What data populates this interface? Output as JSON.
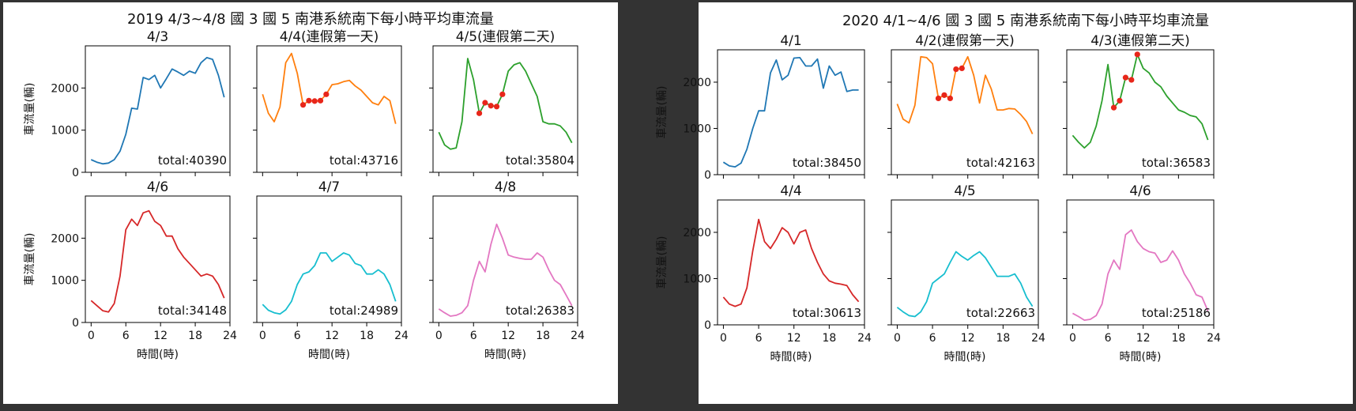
{
  "chart_data": [
    {
      "type": "line",
      "title": "2019 4/3~4/8 國 3 國 5 南港系統南下每小時平均車流量",
      "ylabel": "車流量(輛)",
      "xlabel": "時間(時)",
      "x": [
        0,
        1,
        2,
        3,
        4,
        5,
        6,
        7,
        8,
        9,
        10,
        11,
        12,
        13,
        14,
        15,
        16,
        17,
        18,
        19,
        20,
        21,
        22,
        23
      ],
      "xticks": [
        0,
        6,
        12,
        18,
        24
      ],
      "yticks": [
        0,
        1000,
        2000
      ],
      "ylim": [
        0,
        3000
      ],
      "xlim": [
        -1,
        24
      ],
      "subplots": [
        {
          "title": "4/3",
          "color": "#1f77b4",
          "total_label": "total:40390",
          "values": [
            300,
            240,
            200,
            220,
            300,
            500,
            900,
            1520,
            1500,
            2250,
            2200,
            2300,
            2000,
            2220,
            2450,
            2380,
            2300,
            2400,
            2350,
            2600,
            2720,
            2680,
            2300,
            1780
          ],
          "highlight": []
        },
        {
          "title": "4/4(連假第一天)",
          "color": "#ff7f0e",
          "total_label": "total:43716",
          "values": [
            1850,
            1400,
            1200,
            1550,
            2600,
            2820,
            2350,
            1600,
            1700,
            1690,
            1700,
            1850,
            2080,
            2100,
            2150,
            2180,
            2050,
            1950,
            1800,
            1650,
            1600,
            1800,
            1700,
            1150
          ],
          "highlight": [
            7,
            8,
            9,
            10,
            11
          ]
        },
        {
          "title": "4/5(連假第二天)",
          "color": "#2ca02c",
          "total_label": "total:35804",
          "values": [
            950,
            650,
            550,
            580,
            1200,
            2700,
            2200,
            1400,
            1650,
            1580,
            1560,
            1850,
            2400,
            2550,
            2600,
            2400,
            2100,
            1800,
            1200,
            1150,
            1150,
            1100,
            950,
            700
          ],
          "highlight": [
            7,
            8,
            9,
            10,
            11
          ]
        },
        {
          "title": "4/6",
          "color": "#d62728",
          "total_label": "total:34148",
          "values": [
            520,
            400,
            280,
            250,
            450,
            1100,
            2200,
            2450,
            2300,
            2600,
            2650,
            2400,
            2300,
            2050,
            2050,
            1750,
            1550,
            1400,
            1250,
            1100,
            1150,
            1100,
            900,
            580
          ],
          "highlight": []
        },
        {
          "title": "4/7",
          "color": "#17becf",
          "total_label": "total:24989",
          "values": [
            430,
            290,
            230,
            200,
            300,
            500,
            900,
            1150,
            1200,
            1350,
            1650,
            1650,
            1450,
            1550,
            1650,
            1600,
            1400,
            1350,
            1150,
            1150,
            1250,
            1150,
            900,
            500
          ],
          "highlight": []
        },
        {
          "title": "4/8",
          "color": "#e377c2",
          "total_label": "total:26383",
          "values": [
            320,
            230,
            150,
            170,
            230,
            400,
            1000,
            1450,
            1200,
            1850,
            2330,
            2000,
            1600,
            1550,
            1520,
            1500,
            1500,
            1650,
            1550,
            1250,
            1000,
            900,
            650,
            400
          ],
          "highlight": []
        }
      ]
    },
    {
      "type": "line",
      "title": "2020 4/1~4/6 國 3 國 5 南港系統南下每小時平均車流量",
      "ylabel": "車流量(輛)",
      "xlabel": "時間(時)",
      "x": [
        0,
        1,
        2,
        3,
        4,
        5,
        6,
        7,
        8,
        9,
        10,
        11,
        12,
        13,
        14,
        15,
        16,
        17,
        18,
        19,
        20,
        21,
        22,
        23
      ],
      "xticks": [
        0,
        6,
        12,
        18,
        24
      ],
      "yticks": [
        0,
        1000,
        2000
      ],
      "ylim": [
        0,
        2700
      ],
      "xlim": [
        -1,
        24
      ],
      "subplots": [
        {
          "title": "4/1",
          "color": "#1f77b4",
          "total_label": "total:38450",
          "values": [
            270,
            190,
            170,
            250,
            550,
            1000,
            1380,
            1380,
            2200,
            2480,
            2050,
            2150,
            2520,
            2530,
            2350,
            2350,
            2500,
            1870,
            2350,
            2150,
            2220,
            1800,
            1830,
            1830
          ],
          "highlight": []
        },
        {
          "title": "4/2(連假第一天)",
          "color": "#ff7f0e",
          "total_label": "total:42163",
          "values": [
            1530,
            1200,
            1120,
            1500,
            2550,
            2530,
            2400,
            1650,
            1720,
            1650,
            2280,
            2300,
            2550,
            2150,
            1550,
            2150,
            1850,
            1400,
            1400,
            1430,
            1420,
            1300,
            1150,
            880
          ],
          "highlight": [
            7,
            8,
            9,
            10,
            11
          ]
        },
        {
          "title": "4/3(連假第二天)",
          "color": "#2ca02c",
          "total_label": "total:36583",
          "values": [
            850,
            700,
            580,
            700,
            1050,
            1600,
            2380,
            1450,
            1600,
            2100,
            2050,
            2600,
            2300,
            2200,
            2000,
            1900,
            1700,
            1550,
            1400,
            1350,
            1280,
            1250,
            1100,
            750
          ],
          "highlight": [
            7,
            8,
            9,
            10,
            11
          ]
        },
        {
          "title": "4/4",
          "color": "#d62728",
          "total_label": "total:30613",
          "values": [
            600,
            450,
            400,
            450,
            800,
            1600,
            2280,
            1800,
            1650,
            1850,
            2100,
            2000,
            1750,
            2000,
            2050,
            1650,
            1350,
            1100,
            950,
            900,
            880,
            850,
            650,
            500
          ],
          "highlight": []
        },
        {
          "title": "4/5",
          "color": "#17becf",
          "total_label": "total:22663",
          "values": [
            380,
            280,
            200,
            180,
            280,
            500,
            900,
            1000,
            1100,
            1350,
            1580,
            1480,
            1400,
            1500,
            1580,
            1450,
            1250,
            1050,
            1050,
            1050,
            1100,
            900,
            600,
            400
          ],
          "highlight": []
        },
        {
          "title": "4/6",
          "color": "#e377c2",
          "total_label": "total:25186",
          "values": [
            250,
            180,
            100,
            120,
            200,
            450,
            1100,
            1400,
            1200,
            1950,
            2050,
            1800,
            1650,
            1580,
            1550,
            1350,
            1400,
            1600,
            1400,
            1100,
            900,
            650,
            600,
            300
          ],
          "highlight": []
        }
      ]
    }
  ]
}
